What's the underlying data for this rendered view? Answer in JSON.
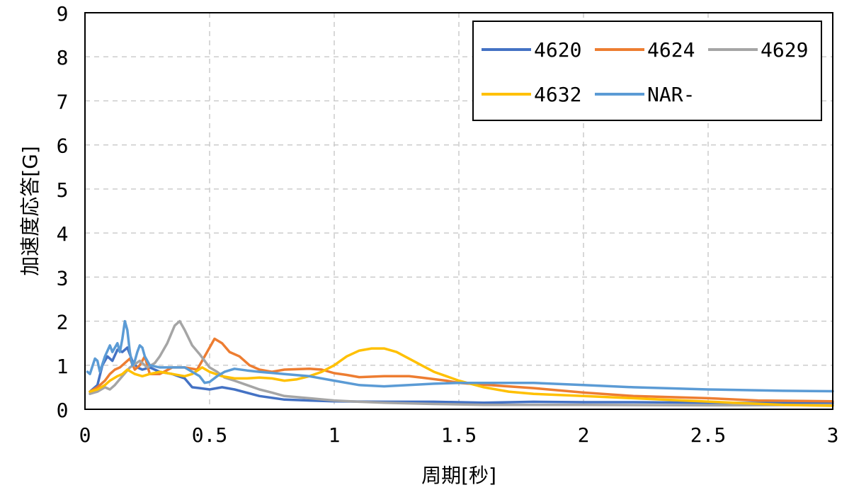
{
  "chart_data": {
    "type": "line",
    "title": "",
    "xlabel": "周期[秒]",
    "ylabel": "加速度応答[G]",
    "xlim": [
      0,
      3
    ],
    "ylim": [
      0,
      9
    ],
    "x_ticks": [
      0,
      0.5,
      1,
      1.5,
      2,
      2.5,
      3
    ],
    "x_tick_labels": [
      "0",
      "0.5",
      "1",
      "1.5",
      "2",
      "2.5",
      "3"
    ],
    "y_ticks": [
      0,
      1,
      2,
      3,
      4,
      5,
      6,
      7,
      8,
      9
    ],
    "y_tick_labels": [
      "0",
      "1",
      "2",
      "3",
      "4",
      "5",
      "6",
      "7",
      "8",
      "9"
    ],
    "grid": true,
    "legend_position": "top-right",
    "series": [
      {
        "name": "4620",
        "color": "#4472c4",
        "points": [
          [
            0.02,
            0.4
          ],
          [
            0.05,
            0.55
          ],
          [
            0.07,
            1.0
          ],
          [
            0.09,
            1.2
          ],
          [
            0.11,
            1.1
          ],
          [
            0.13,
            1.35
          ],
          [
            0.15,
            1.3
          ],
          [
            0.17,
            1.4
          ],
          [
            0.19,
            1.1
          ],
          [
            0.21,
            0.95
          ],
          [
            0.23,
            0.9
          ],
          [
            0.26,
            0.95
          ],
          [
            0.3,
            0.85
          ],
          [
            0.35,
            0.8
          ],
          [
            0.4,
            0.7
          ],
          [
            0.43,
            0.5
          ],
          [
            0.46,
            0.48
          ],
          [
            0.5,
            0.45
          ],
          [
            0.55,
            0.5
          ],
          [
            0.6,
            0.45
          ],
          [
            0.7,
            0.3
          ],
          [
            0.8,
            0.22
          ],
          [
            0.9,
            0.2
          ],
          [
            1.0,
            0.18
          ],
          [
            1.2,
            0.17
          ],
          [
            1.4,
            0.17
          ],
          [
            1.6,
            0.15
          ],
          [
            1.8,
            0.17
          ],
          [
            2.0,
            0.16
          ],
          [
            2.2,
            0.16
          ],
          [
            2.5,
            0.15
          ],
          [
            2.8,
            0.14
          ],
          [
            3.0,
            0.14
          ]
        ]
      },
      {
        "name": "4624",
        "color": "#ed7d31",
        "points": [
          [
            0.02,
            0.4
          ],
          [
            0.05,
            0.5
          ],
          [
            0.08,
            0.65
          ],
          [
            0.1,
            0.8
          ],
          [
            0.12,
            0.9
          ],
          [
            0.14,
            0.95
          ],
          [
            0.16,
            1.05
          ],
          [
            0.18,
            1.15
          ],
          [
            0.2,
            0.9
          ],
          [
            0.22,
            1.0
          ],
          [
            0.24,
            1.2
          ],
          [
            0.26,
            0.8
          ],
          [
            0.3,
            0.8
          ],
          [
            0.35,
            0.95
          ],
          [
            0.4,
            0.95
          ],
          [
            0.45,
            0.9
          ],
          [
            0.48,
            1.2
          ],
          [
            0.52,
            1.6
          ],
          [
            0.55,
            1.5
          ],
          [
            0.58,
            1.3
          ],
          [
            0.62,
            1.2
          ],
          [
            0.66,
            1.0
          ],
          [
            0.7,
            0.9
          ],
          [
            0.75,
            0.85
          ],
          [
            0.8,
            0.9
          ],
          [
            0.9,
            0.92
          ],
          [
            0.95,
            0.9
          ],
          [
            1.0,
            0.82
          ],
          [
            1.05,
            0.78
          ],
          [
            1.1,
            0.73
          ],
          [
            1.2,
            0.75
          ],
          [
            1.3,
            0.75
          ],
          [
            1.35,
            0.72
          ],
          [
            1.45,
            0.65
          ],
          [
            1.5,
            0.6
          ],
          [
            1.6,
            0.56
          ],
          [
            1.8,
            0.48
          ],
          [
            2.0,
            0.38
          ],
          [
            2.2,
            0.3
          ],
          [
            2.5,
            0.25
          ],
          [
            2.7,
            0.2
          ],
          [
            3.0,
            0.18
          ]
        ]
      },
      {
        "name": "4629",
        "color": "#a5a5a5",
        "points": [
          [
            0.02,
            0.35
          ],
          [
            0.05,
            0.4
          ],
          [
            0.08,
            0.5
          ],
          [
            0.1,
            0.45
          ],
          [
            0.12,
            0.55
          ],
          [
            0.15,
            0.75
          ],
          [
            0.18,
            0.95
          ],
          [
            0.22,
            1.1
          ],
          [
            0.25,
            0.95
          ],
          [
            0.28,
            1.05
          ],
          [
            0.3,
            1.2
          ],
          [
            0.33,
            1.5
          ],
          [
            0.36,
            1.9
          ],
          [
            0.38,
            2.0
          ],
          [
            0.4,
            1.8
          ],
          [
            0.43,
            1.45
          ],
          [
            0.46,
            1.25
          ],
          [
            0.48,
            1.1
          ],
          [
            0.5,
            0.95
          ],
          [
            0.53,
            0.85
          ],
          [
            0.56,
            0.72
          ],
          [
            0.6,
            0.65
          ],
          [
            0.65,
            0.55
          ],
          [
            0.7,
            0.45
          ],
          [
            0.75,
            0.38
          ],
          [
            0.8,
            0.3
          ],
          [
            0.9,
            0.25
          ],
          [
            1.0,
            0.2
          ],
          [
            1.1,
            0.17
          ],
          [
            1.2,
            0.15
          ],
          [
            1.4,
            0.12
          ],
          [
            1.6,
            0.1
          ],
          [
            2.0,
            0.1
          ],
          [
            2.5,
            0.09
          ],
          [
            3.0,
            0.1
          ]
        ]
      },
      {
        "name": "4632",
        "color": "#ffc000",
        "points": [
          [
            0.02,
            0.4
          ],
          [
            0.05,
            0.45
          ],
          [
            0.08,
            0.55
          ],
          [
            0.1,
            0.65
          ],
          [
            0.13,
            0.75
          ],
          [
            0.15,
            0.8
          ],
          [
            0.17,
            0.9
          ],
          [
            0.2,
            0.8
          ],
          [
            0.23,
            0.75
          ],
          [
            0.26,
            0.8
          ],
          [
            0.3,
            0.85
          ],
          [
            0.35,
            0.8
          ],
          [
            0.4,
            0.75
          ],
          [
            0.43,
            0.8
          ],
          [
            0.47,
            0.95
          ],
          [
            0.5,
            0.85
          ],
          [
            0.55,
            0.75
          ],
          [
            0.6,
            0.7
          ],
          [
            0.65,
            0.7
          ],
          [
            0.7,
            0.72
          ],
          [
            0.75,
            0.7
          ],
          [
            0.8,
            0.65
          ],
          [
            0.85,
            0.68
          ],
          [
            0.9,
            0.75
          ],
          [
            0.95,
            0.85
          ],
          [
            1.0,
            1.0
          ],
          [
            1.05,
            1.2
          ],
          [
            1.1,
            1.33
          ],
          [
            1.15,
            1.38
          ],
          [
            1.2,
            1.38
          ],
          [
            1.25,
            1.3
          ],
          [
            1.3,
            1.15
          ],
          [
            1.35,
            1.0
          ],
          [
            1.4,
            0.85
          ],
          [
            1.45,
            0.75
          ],
          [
            1.5,
            0.65
          ],
          [
            1.6,
            0.5
          ],
          [
            1.7,
            0.4
          ],
          [
            1.8,
            0.35
          ],
          [
            2.0,
            0.3
          ],
          [
            2.2,
            0.25
          ],
          [
            2.4,
            0.2
          ],
          [
            2.6,
            0.15
          ],
          [
            2.8,
            0.1
          ],
          [
            3.0,
            0.08
          ]
        ]
      },
      {
        "name": "NAR-",
        "color": "#5b9bd5",
        "points": [
          [
            0.01,
            0.85
          ],
          [
            0.02,
            0.8
          ],
          [
            0.04,
            1.15
          ],
          [
            0.05,
            1.1
          ],
          [
            0.06,
            0.85
          ],
          [
            0.08,
            1.2
          ],
          [
            0.1,
            1.45
          ],
          [
            0.11,
            1.3
          ],
          [
            0.13,
            1.5
          ],
          [
            0.14,
            1.3
          ],
          [
            0.15,
            1.6
          ],
          [
            0.16,
            2.0
          ],
          [
            0.17,
            1.8
          ],
          [
            0.18,
            1.3
          ],
          [
            0.19,
            1.0
          ],
          [
            0.2,
            1.1
          ],
          [
            0.21,
            1.3
          ],
          [
            0.22,
            1.45
          ],
          [
            0.23,
            1.4
          ],
          [
            0.24,
            1.2
          ],
          [
            0.26,
            1.0
          ],
          [
            0.3,
            0.95
          ],
          [
            0.35,
            0.95
          ],
          [
            0.4,
            0.95
          ],
          [
            0.43,
            0.85
          ],
          [
            0.46,
            0.75
          ],
          [
            0.48,
            0.6
          ],
          [
            0.5,
            0.62
          ],
          [
            0.53,
            0.75
          ],
          [
            0.56,
            0.85
          ],
          [
            0.6,
            0.92
          ],
          [
            0.65,
            0.88
          ],
          [
            0.7,
            0.85
          ],
          [
            0.8,
            0.8
          ],
          [
            0.9,
            0.75
          ],
          [
            1.0,
            0.65
          ],
          [
            1.1,
            0.55
          ],
          [
            1.2,
            0.52
          ],
          [
            1.3,
            0.55
          ],
          [
            1.4,
            0.58
          ],
          [
            1.5,
            0.6
          ],
          [
            1.6,
            0.6
          ],
          [
            1.8,
            0.6
          ],
          [
            2.0,
            0.55
          ],
          [
            2.2,
            0.5
          ],
          [
            2.5,
            0.45
          ],
          [
            2.8,
            0.42
          ],
          [
            3.0,
            0.41
          ]
        ]
      }
    ]
  }
}
